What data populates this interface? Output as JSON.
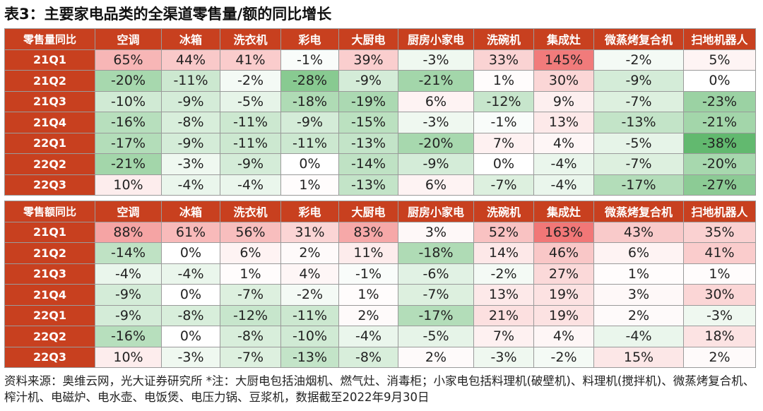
{
  "title": "表3：主要家电品类的全渠道零售量/额的同比增长",
  "columns": [
    "空调",
    "冰箱",
    "洗衣机",
    "彩电",
    "大厨电",
    "厨房小家电",
    "洗碗机",
    "集成灶",
    "微蒸烤复合机",
    "扫地机器人"
  ],
  "volume_table": {
    "header": "零售量同比",
    "rows": [
      {
        "label": "21Q1",
        "values": [
          "65%",
          "44%",
          "41%",
          "-1%",
          "39%",
          "-3%",
          "33%",
          "145%",
          "-2%",
          "5%"
        ]
      },
      {
        "label": "21Q2",
        "values": [
          "-20%",
          "-11%",
          "-2%",
          "-28%",
          "-9%",
          "-21%",
          "1%",
          "30%",
          "-9%",
          "0%"
        ]
      },
      {
        "label": "21Q3",
        "values": [
          "-10%",
          "-9%",
          "-5%",
          "-18%",
          "-19%",
          "6%",
          "-12%",
          "9%",
          "-7%",
          "-23%"
        ]
      },
      {
        "label": "21Q4",
        "values": [
          "-16%",
          "-8%",
          "-11%",
          "-9%",
          "-15%",
          "-3%",
          "-1%",
          "13%",
          "-13%",
          "-21%"
        ]
      },
      {
        "label": "22Q1",
        "values": [
          "-17%",
          "-9%",
          "-11%",
          "-11%",
          "-13%",
          "-20%",
          "7%",
          "4%",
          "-5%",
          "-38%"
        ]
      },
      {
        "label": "22Q2",
        "values": [
          "-21%",
          "-3%",
          "-9%",
          "0%",
          "-14%",
          "-9%",
          "0%",
          "-4%",
          "-7%",
          "-20%"
        ]
      },
      {
        "label": "22Q3",
        "values": [
          "10%",
          "-4%",
          "-4%",
          "1%",
          "-13%",
          "6%",
          "-7%",
          "-4%",
          "-17%",
          "-27%"
        ]
      }
    ]
  },
  "value_table": {
    "header": "零售额同比",
    "rows": [
      {
        "label": "21Q1",
        "values": [
          "88%",
          "61%",
          "56%",
          "31%",
          "83%",
          "3%",
          "52%",
          "163%",
          "43%",
          "35%"
        ]
      },
      {
        "label": "21Q2",
        "values": [
          "-14%",
          "0%",
          "6%",
          "2%",
          "11%",
          "-18%",
          "14%",
          "46%",
          "6%",
          "41%"
        ]
      },
      {
        "label": "21Q3",
        "values": [
          "-4%",
          "-4%",
          "1%",
          "4%",
          "-1%",
          "-6%",
          "-2%",
          "27%",
          "1%",
          "1%"
        ]
      },
      {
        "label": "21Q4",
        "values": [
          "-9%",
          "0%",
          "-7%",
          "-2%",
          "1%",
          "-7%",
          "13%",
          "19%",
          "3%",
          "30%"
        ]
      },
      {
        "label": "22Q1",
        "values": [
          "-9%",
          "-8%",
          "-12%",
          "-11%",
          "2%",
          "-17%",
          "21%",
          "19%",
          "2%",
          "-3%"
        ]
      },
      {
        "label": "22Q2",
        "values": [
          "-16%",
          "0%",
          "-8%",
          "-10%",
          "-4%",
          "-5%",
          "7%",
          "4%",
          "-4%",
          "18%"
        ]
      },
      {
        "label": "22Q3",
        "values": [
          "10%",
          "-3%",
          "-7%",
          "-13%",
          "-8%",
          "2%",
          "-3%",
          "-2%",
          "15%",
          "2%"
        ]
      }
    ]
  },
  "note": "资料来源：奥维云网，光大证券研究所 *注：大厨电包括油烟机、燃气灶、消毒柜；小家电包括料理机(破壁机)、料理机(搅拌机)、微蒸烤复合机、榨汁机、电磁炉、电水壶、电饭煲、电压力锅、豆浆机，数据截至2022年9月30日",
  "colors": {
    "header_bg": "#c8401f",
    "positive_max": "#f07070",
    "negative_max": "#5ab567",
    "neutral": "#ffffff"
  }
}
